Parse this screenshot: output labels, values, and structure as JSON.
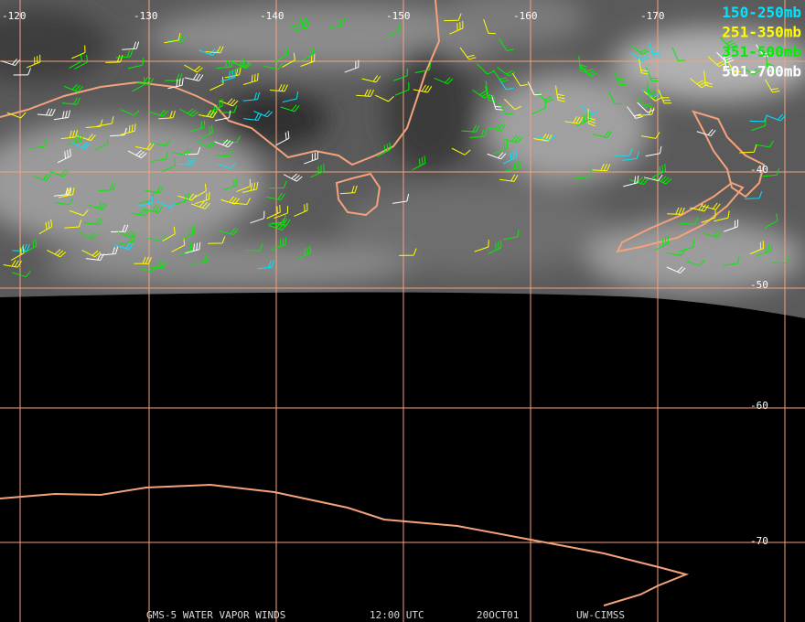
{
  "map": {
    "longitude_labels": [
      "-120",
      "-130",
      "-140",
      "-150",
      "-160",
      "-170"
    ],
    "latitude_labels": [
      "-40",
      "-50",
      "-60",
      "-70"
    ],
    "legend": [
      {
        "label": "150-250mb",
        "color": "#00e5ff"
      },
      {
        "label": "251-350mb",
        "color": "#ffff00"
      },
      {
        "label": "351-500mb",
        "color": "#00ee00"
      },
      {
        "label": "501-700mb",
        "color": "#ffffff"
      }
    ],
    "footer": [
      "GMS-5 WATER VAPOR WINDS",
      "12:00 UTC",
      "20OCT01",
      "UW-CIMSS"
    ]
  }
}
